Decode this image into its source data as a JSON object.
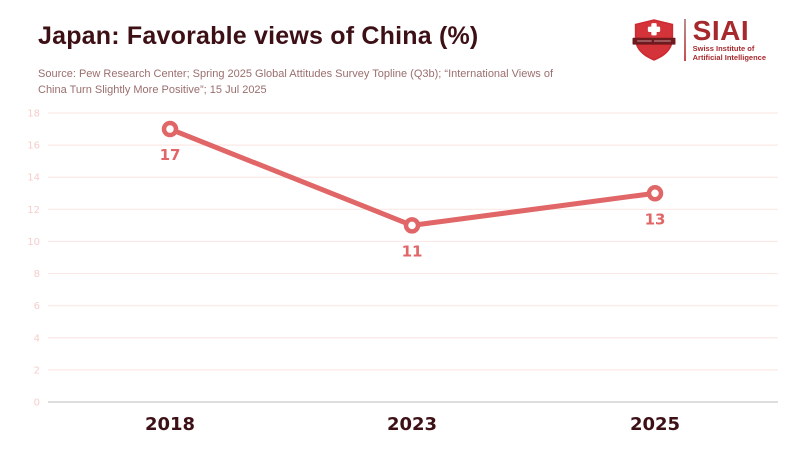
{
  "header": {
    "title": "Japan: Favorable views of China (%)",
    "source_lines": [
      "Source: Pew Research Center; Spring 2025 Global Attitudes Survey Topline (Q3b); “International Views of",
      "China Turn Slightly More Positive”; 15 Jul 2025"
    ]
  },
  "logo": {
    "acronym": "SIAI",
    "subtitle_line1": "Swiss Institute of",
    "subtitle_line2": "Artificial Intelligence",
    "brand_color": "#a6292e",
    "shield_color": "#cd2a31",
    "banner_color": "#6e1a1e"
  },
  "chart_data": {
    "type": "line",
    "title": "Japan: Favorable views of China (%)",
    "categories": [
      "2018",
      "2023",
      "2025"
    ],
    "series": [
      {
        "name": "Favorable views of China (%)",
        "values": [
          17,
          11,
          13
        ]
      }
    ],
    "ylim": [
      0,
      18
    ],
    "yticks": [
      0,
      2,
      4,
      6,
      8,
      10,
      12,
      14,
      16,
      18
    ],
    "grid": true,
    "legend": false,
    "data_labels": true,
    "colors": {
      "line": "#e06667",
      "marker_fill": "#ffffff",
      "gridline": "#fbe9e6",
      "axis_line": "#c9c9c9",
      "tick_label": "#f5cfcb",
      "title_text": "#3d1016",
      "source_text": "#9b6e6e"
    }
  }
}
